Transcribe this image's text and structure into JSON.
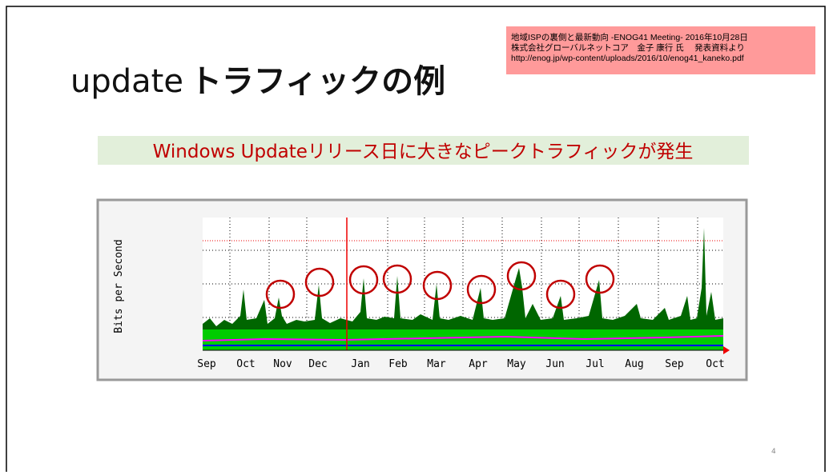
{
  "slide": {
    "title_en": "update",
    "title_ja": "トラフィックの例",
    "source": [
      "地域ISPの裏側と最新動向 -ENOG41 Meeting- 2016年10月28日",
      "株式会社グローバルネットコア　金子 康行 氏　 発表資料より",
      "http://enog.jp/wp-content/uploads/2016/10/enog41_kaneko.pdf"
    ],
    "subtitle": "Windows Updateリリース日に大きなピークトラフィックが発生",
    "graph": {
      "y_label": "Bits per Second",
      "months": [
        "Sep",
        "Oct",
        "Nov",
        "Dec",
        "Jan",
        "Feb",
        "Mar",
        "Apr",
        "May",
        "Jun",
        "Jul",
        "Aug",
        "Sep",
        "Oct"
      ]
    },
    "page_number": "4"
  }
}
